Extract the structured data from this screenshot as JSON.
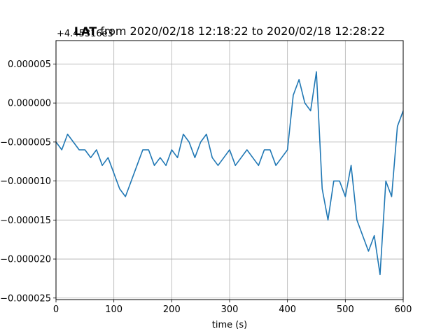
{
  "chart_data": {
    "type": "line",
    "title_bold": "LAT",
    "title_rest": " from 2020/02/18 12:18:22 to 2020/02/18 12:28:22",
    "xlabel": "time (s)",
    "ylabel": "",
    "y_offset_label": "+4.45316e3",
    "xlim": [
      0,
      600
    ],
    "ylim": [
      -2.52e-05,
      8e-06
    ],
    "x_ticks": [
      0,
      100,
      200,
      300,
      400,
      500,
      600
    ],
    "x_tick_labels": [
      "0",
      "100",
      "200",
      "300",
      "400",
      "500",
      "600"
    ],
    "y_ticks": [
      5e-06,
      0.0,
      -5e-06,
      -1e-05,
      -1.5e-05,
      -2e-05,
      -2.5e-05
    ],
    "y_tick_labels": [
      "0.000005",
      "0.000000",
      "−0.000005",
      "−0.000010",
      "−0.000015",
      "−0.000020",
      "−0.000025"
    ],
    "grid": true,
    "line_color": "#1f77b4",
    "series": [
      {
        "x": [
          0,
          10,
          20,
          30,
          40,
          50,
          60,
          70,
          80,
          90,
          100,
          110,
          120,
          130,
          140,
          150,
          160,
          170,
          180,
          190,
          200,
          210,
          220,
          230,
          240,
          250,
          260,
          270,
          280,
          290,
          300,
          310,
          320,
          330,
          340,
          350,
          360,
          370,
          380,
          390,
          400,
          410,
          420,
          430,
          440,
          450,
          460,
          470,
          480,
          490,
          500,
          510,
          520,
          530,
          540,
          550,
          560,
          570,
          580,
          590,
          600
        ],
        "values": [
          -5e-06,
          -6e-06,
          -4e-06,
          -5e-06,
          -6e-06,
          -6e-06,
          -7e-06,
          -6e-06,
          -8e-06,
          -7e-06,
          -9e-06,
          -1.1e-05,
          -1.2e-05,
          -1e-05,
          -8e-06,
          -6e-06,
          -6e-06,
          -8e-06,
          -7e-06,
          -8e-06,
          -6e-06,
          -7e-06,
          -4e-06,
          -5e-06,
          -7e-06,
          -5e-06,
          -4e-06,
          -7e-06,
          -8e-06,
          -7e-06,
          -6e-06,
          -8e-06,
          -7e-06,
          -6e-06,
          -7e-06,
          -8e-06,
          -6e-06,
          -6e-06,
          -8e-06,
          -7e-06,
          -6e-06,
          1e-06,
          3e-06,
          0.0,
          -1e-06,
          4e-06,
          -1.1e-05,
          -1.5e-05,
          -1e-05,
          -1e-05,
          -1.2e-05,
          -8e-06,
          -1.5e-05,
          -1.7e-05,
          -1.9e-05,
          -1.7e-05,
          -2.2e-05,
          -1e-05,
          -1.2e-05,
          -3e-06,
          -1e-06
        ]
      }
    ]
  }
}
